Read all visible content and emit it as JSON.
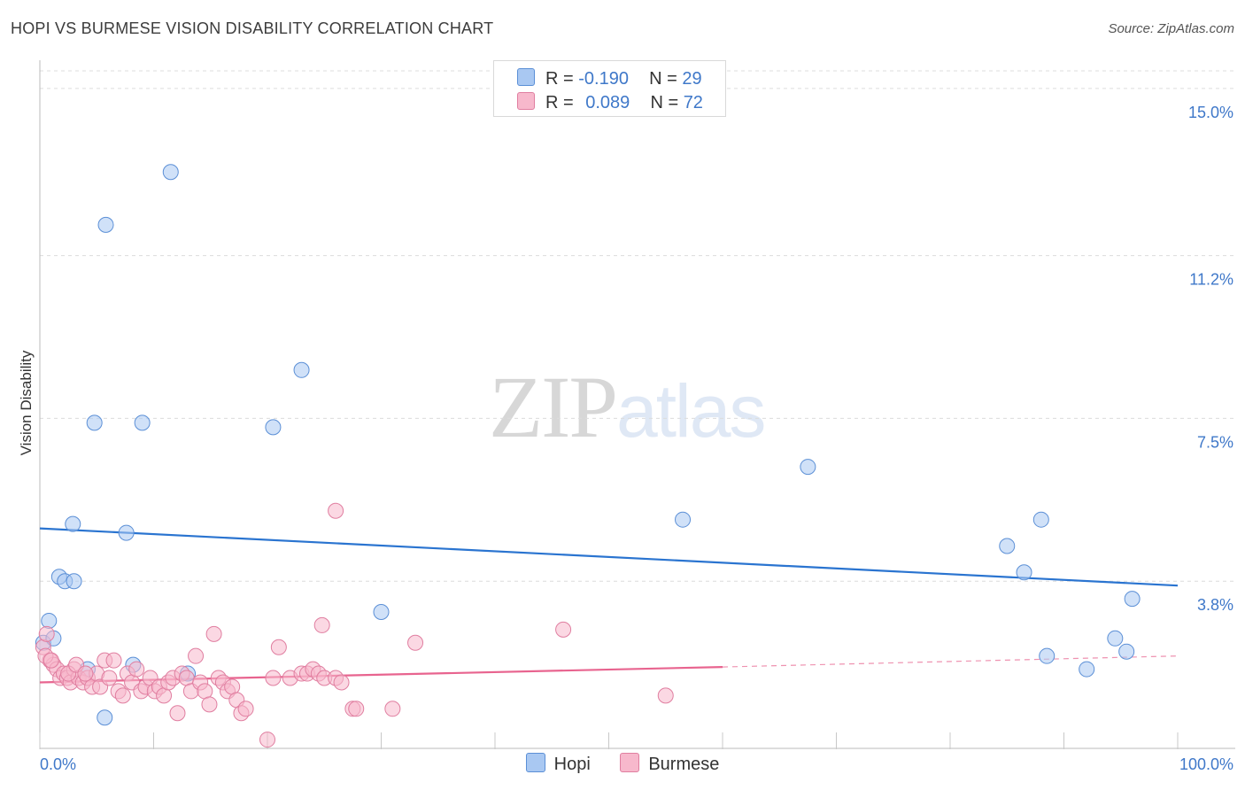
{
  "title": "HOPI VS BURMESE VISION DISABILITY CORRELATION CHART",
  "source": "Source: ZipAtlas.com",
  "watermark": {
    "zip": "ZIP",
    "atlas": "atlas"
  },
  "legend": {
    "rows": [
      {
        "r_label": "R =",
        "r_value": "-0.190",
        "n_label": "N =",
        "n_value": "29",
        "color": "#a9c8f2"
      },
      {
        "r_label": "R =",
        "r_value": "0.089",
        "n_label": "N =",
        "n_value": "72",
        "color": "#f7b8cc"
      }
    ]
  },
  "bottom_legend": {
    "items": [
      {
        "label": "Hopi",
        "color": "#a9c8f2"
      },
      {
        "label": "Burmese",
        "color": "#f7b8cc"
      }
    ]
  },
  "chart_data": {
    "type": "scatter",
    "ylabel": "Vision Disability",
    "x_tick_labels": [
      "0.0%",
      "100.0%"
    ],
    "y_tick_labels": [
      "15.0%",
      "11.2%",
      "7.5%",
      "3.8%"
    ],
    "y_ticks": [
      15.0,
      11.2,
      7.5,
      3.8
    ],
    "xlim": [
      0,
      100
    ],
    "ylim": [
      0,
      15.4
    ],
    "grid": true,
    "series": [
      {
        "name": "Hopi",
        "color": "#a9c8f2",
        "stroke": "#5b8fd6",
        "line_color": "#2a74d0",
        "trend": {
          "x0": 0,
          "y0": 5.0,
          "x1": 100,
          "y1": 3.7
        },
        "points": [
          [
            0.3,
            2.4
          ],
          [
            0.8,
            2.9
          ],
          [
            1.2,
            2.5
          ],
          [
            1.7,
            3.9
          ],
          [
            2.2,
            3.8
          ],
          [
            3.0,
            3.8
          ],
          [
            2.9,
            5.1
          ],
          [
            4.2,
            1.8
          ],
          [
            4.8,
            7.4
          ],
          [
            5.7,
            0.7
          ],
          [
            5.8,
            11.9
          ],
          [
            7.6,
            4.9
          ],
          [
            8.2,
            1.9
          ],
          [
            9.0,
            7.4
          ],
          [
            11.5,
            13.1
          ],
          [
            13.0,
            1.7
          ],
          [
            20.5,
            7.3
          ],
          [
            23.0,
            8.6
          ],
          [
            30.0,
            3.1
          ],
          [
            56.5,
            5.2
          ],
          [
            67.5,
            6.4
          ],
          [
            85.0,
            4.6
          ],
          [
            86.5,
            4.0
          ],
          [
            88.0,
            5.2
          ],
          [
            88.5,
            2.1
          ],
          [
            92.0,
            1.8
          ],
          [
            94.5,
            2.5
          ],
          [
            95.5,
            2.2
          ],
          [
            96.0,
            3.4
          ]
        ]
      },
      {
        "name": "Burmese",
        "color": "#f7b8cc",
        "stroke": "#e07ea0",
        "line_color": "#e8648f",
        "trend": {
          "x0": 0,
          "y0": 1.5,
          "x1": 60,
          "y1": 1.85,
          "x2": 100,
          "y2": 2.1
        },
        "points": [
          [
            0.3,
            2.3
          ],
          [
            0.6,
            2.6
          ],
          [
            0.9,
            2.0
          ],
          [
            1.2,
            1.9
          ],
          [
            1.5,
            1.8
          ],
          [
            1.8,
            1.6
          ],
          [
            2.1,
            1.7
          ],
          [
            2.4,
            1.6
          ],
          [
            2.7,
            1.5
          ],
          [
            3.0,
            1.8
          ],
          [
            3.4,
            1.6
          ],
          [
            3.8,
            1.5
          ],
          [
            4.2,
            1.6
          ],
          [
            4.6,
            1.4
          ],
          [
            5.0,
            1.7
          ],
          [
            5.3,
            1.4
          ],
          [
            5.7,
            2.0
          ],
          [
            6.1,
            1.6
          ],
          [
            6.5,
            2.0
          ],
          [
            6.9,
            1.3
          ],
          [
            7.3,
            1.2
          ],
          [
            7.7,
            1.7
          ],
          [
            8.1,
            1.5
          ],
          [
            8.5,
            1.8
          ],
          [
            8.9,
            1.3
          ],
          [
            9.3,
            1.4
          ],
          [
            9.7,
            1.6
          ],
          [
            10.1,
            1.3
          ],
          [
            10.5,
            1.4
          ],
          [
            10.9,
            1.2
          ],
          [
            11.3,
            1.5
          ],
          [
            11.7,
            1.6
          ],
          [
            12.1,
            0.8
          ],
          [
            12.5,
            1.7
          ],
          [
            12.9,
            1.6
          ],
          [
            13.3,
            1.3
          ],
          [
            13.7,
            2.1
          ],
          [
            14.1,
            1.5
          ],
          [
            14.5,
            1.3
          ],
          [
            14.9,
            1.0
          ],
          [
            15.3,
            2.6
          ],
          [
            15.7,
            1.6
          ],
          [
            16.1,
            1.5
          ],
          [
            16.5,
            1.3
          ],
          [
            16.9,
            1.4
          ],
          [
            17.3,
            1.1
          ],
          [
            17.7,
            0.8
          ],
          [
            18.1,
            0.9
          ],
          [
            20.0,
            0.2
          ],
          [
            20.5,
            1.6
          ],
          [
            21.0,
            2.3
          ],
          [
            22.0,
            1.6
          ],
          [
            23.0,
            1.7
          ],
          [
            23.5,
            1.7
          ],
          [
            24.0,
            1.8
          ],
          [
            24.5,
            1.7
          ],
          [
            25.0,
            1.6
          ],
          [
            24.8,
            2.8
          ],
          [
            26.0,
            1.6
          ],
          [
            26.5,
            1.5
          ],
          [
            26.0,
            5.4
          ],
          [
            27.5,
            0.9
          ],
          [
            27.8,
            0.9
          ],
          [
            31.0,
            0.9
          ],
          [
            33.0,
            2.4
          ],
          [
            46.0,
            2.7
          ],
          [
            55.0,
            1.2
          ],
          [
            0.5,
            2.1
          ],
          [
            1.0,
            2.0
          ],
          [
            2.5,
            1.7
          ],
          [
            3.2,
            1.9
          ],
          [
            4.0,
            1.7
          ]
        ]
      }
    ]
  }
}
